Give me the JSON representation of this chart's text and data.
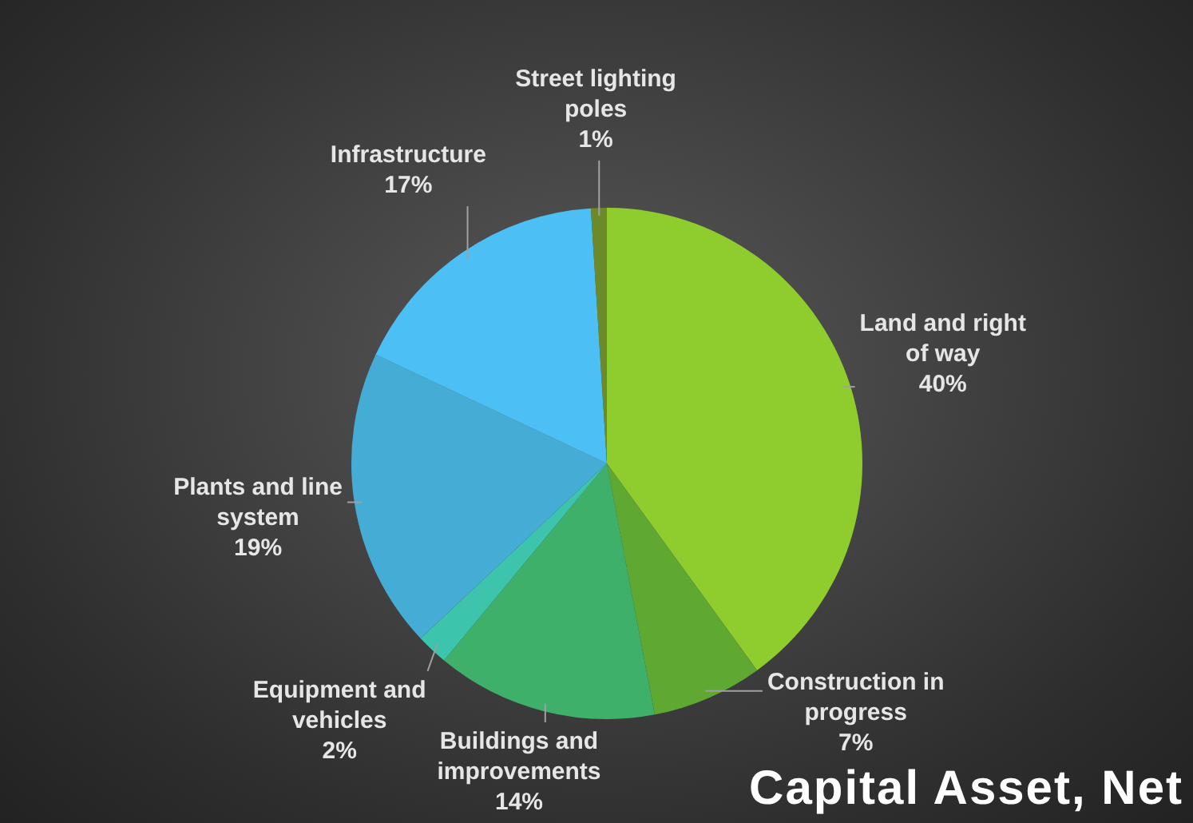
{
  "chart_data": {
    "type": "pie",
    "title": "Capital Asset, Net",
    "categories": [
      "Land and right of way",
      "Construction in progress",
      "Buildings and improvements",
      "Equipment and vehicles",
      "Plants and line system",
      "Infrastructure",
      "Street lighting poles"
    ],
    "values": [
      40,
      7,
      14,
      2,
      19,
      17,
      1
    ],
    "value_labels": [
      "40%",
      "7%",
      "14%",
      "2%",
      "19%",
      "17%",
      "1%"
    ],
    "colors": [
      "#8fcc2e",
      "#5fa832",
      "#3fb06a",
      "#3cc4ac",
      "#45acd6",
      "#4cbff5",
      "#6d8a2a"
    ],
    "legend": false
  }
}
